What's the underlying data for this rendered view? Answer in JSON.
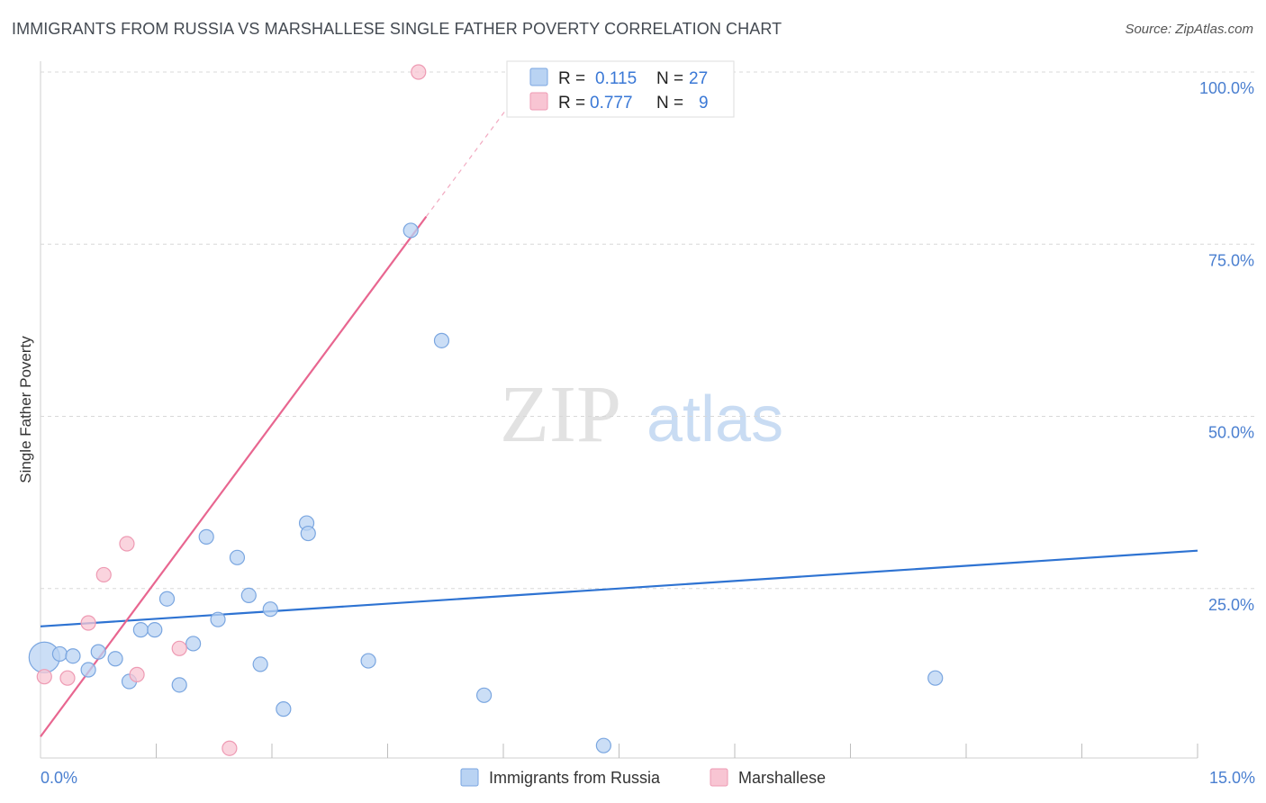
{
  "title": "IMMIGRANTS FROM RUSSIA VS MARSHALLESE SINGLE FATHER POVERTY CORRELATION CHART",
  "source": "Source: ZipAtlas.com",
  "watermark": {
    "zip": "ZIP",
    "atlas": "atlas"
  },
  "colors": {
    "blue_fill": "#b9d3f3",
    "blue_stroke": "#7aa6e0",
    "blue_line": "#2e73d2",
    "pink_fill": "#f8c5d3",
    "pink_stroke": "#ee9ab3",
    "pink_line": "#e86690",
    "grid": "#d8d8d8",
    "tick_text": "#4a7fd0"
  },
  "legend": {
    "rows": [
      {
        "r_label": "R =",
        "r_value": "0.115",
        "n_label": "N =",
        "n_value": "27"
      },
      {
        "r_label": "R =",
        "r_value": "0.777",
        "n_label": "N =",
        "n_value": "9"
      }
    ]
  },
  "chart_data": {
    "type": "scatter",
    "title": "IMMIGRANTS FROM RUSSIA VS MARSHALLESE SINGLE FATHER POVERTY CORRELATION CHART",
    "xlabel": "",
    "ylabel": "Single Father Poverty",
    "xlim": [
      0,
      15
    ],
    "ylim": [
      0,
      100
    ],
    "x_tick_labels": [
      "0.0%",
      "15.0%"
    ],
    "y_tick_labels": [
      "100.0%",
      "75.0%",
      "50.0%",
      "25.0%"
    ],
    "y_tick_values": [
      100,
      75,
      50,
      25
    ],
    "series": [
      {
        "name": "Immigrants from Russia",
        "color": "blue",
        "points": [
          {
            "x": 0.05,
            "y": 15.0,
            "big": true
          },
          {
            "x": 0.25,
            "y": 15.5
          },
          {
            "x": 0.42,
            "y": 15.2
          },
          {
            "x": 0.62,
            "y": 13.2
          },
          {
            "x": 0.75,
            "y": 15.8
          },
          {
            "x": 0.97,
            "y": 14.8
          },
          {
            "x": 1.15,
            "y": 11.5
          },
          {
            "x": 1.3,
            "y": 19.0
          },
          {
            "x": 1.48,
            "y": 19.0
          },
          {
            "x": 1.64,
            "y": 23.5
          },
          {
            "x": 1.8,
            "y": 11.0
          },
          {
            "x": 1.98,
            "y": 17.0
          },
          {
            "x": 2.3,
            "y": 20.5
          },
          {
            "x": 2.15,
            "y": 32.5
          },
          {
            "x": 2.55,
            "y": 29.5
          },
          {
            "x": 2.7,
            "y": 24.0
          },
          {
            "x": 2.85,
            "y": 14.0
          },
          {
            "x": 2.98,
            "y": 22.0
          },
          {
            "x": 3.15,
            "y": 7.5
          },
          {
            "x": 3.45,
            "y": 34.5
          },
          {
            "x": 3.47,
            "y": 33.0
          },
          {
            "x": 4.25,
            "y": 14.5
          },
          {
            "x": 4.8,
            "y": 77.0
          },
          {
            "x": 5.2,
            "y": 61.0
          },
          {
            "x": 5.75,
            "y": 9.5
          },
          {
            "x": 7.3,
            "y": 2.2
          },
          {
            "x": 11.6,
            "y": 12.0
          }
        ],
        "trend": {
          "x1": 0,
          "y1": 19.5,
          "x2": 15,
          "y2": 30.5
        }
      },
      {
        "name": "Marshallese",
        "color": "pink",
        "points": [
          {
            "x": 0.05,
            "y": 12.2
          },
          {
            "x": 0.35,
            "y": 12.0
          },
          {
            "x": 0.62,
            "y": 20.0
          },
          {
            "x": 0.82,
            "y": 27.0
          },
          {
            "x": 1.12,
            "y": 31.5
          },
          {
            "x": 1.25,
            "y": 12.5
          },
          {
            "x": 1.8,
            "y": 16.3
          },
          {
            "x": 2.45,
            "y": 1.8
          },
          {
            "x": 4.9,
            "y": 100.0
          }
        ],
        "trend": {
          "x1": 0,
          "y1": 3.5,
          "x2": 5.0,
          "y2": 79.0
        },
        "trend_dashed": {
          "x1": 5.0,
          "y1": 79.0,
          "x2": 6.5,
          "y2": 101.5
        }
      }
    ]
  }
}
